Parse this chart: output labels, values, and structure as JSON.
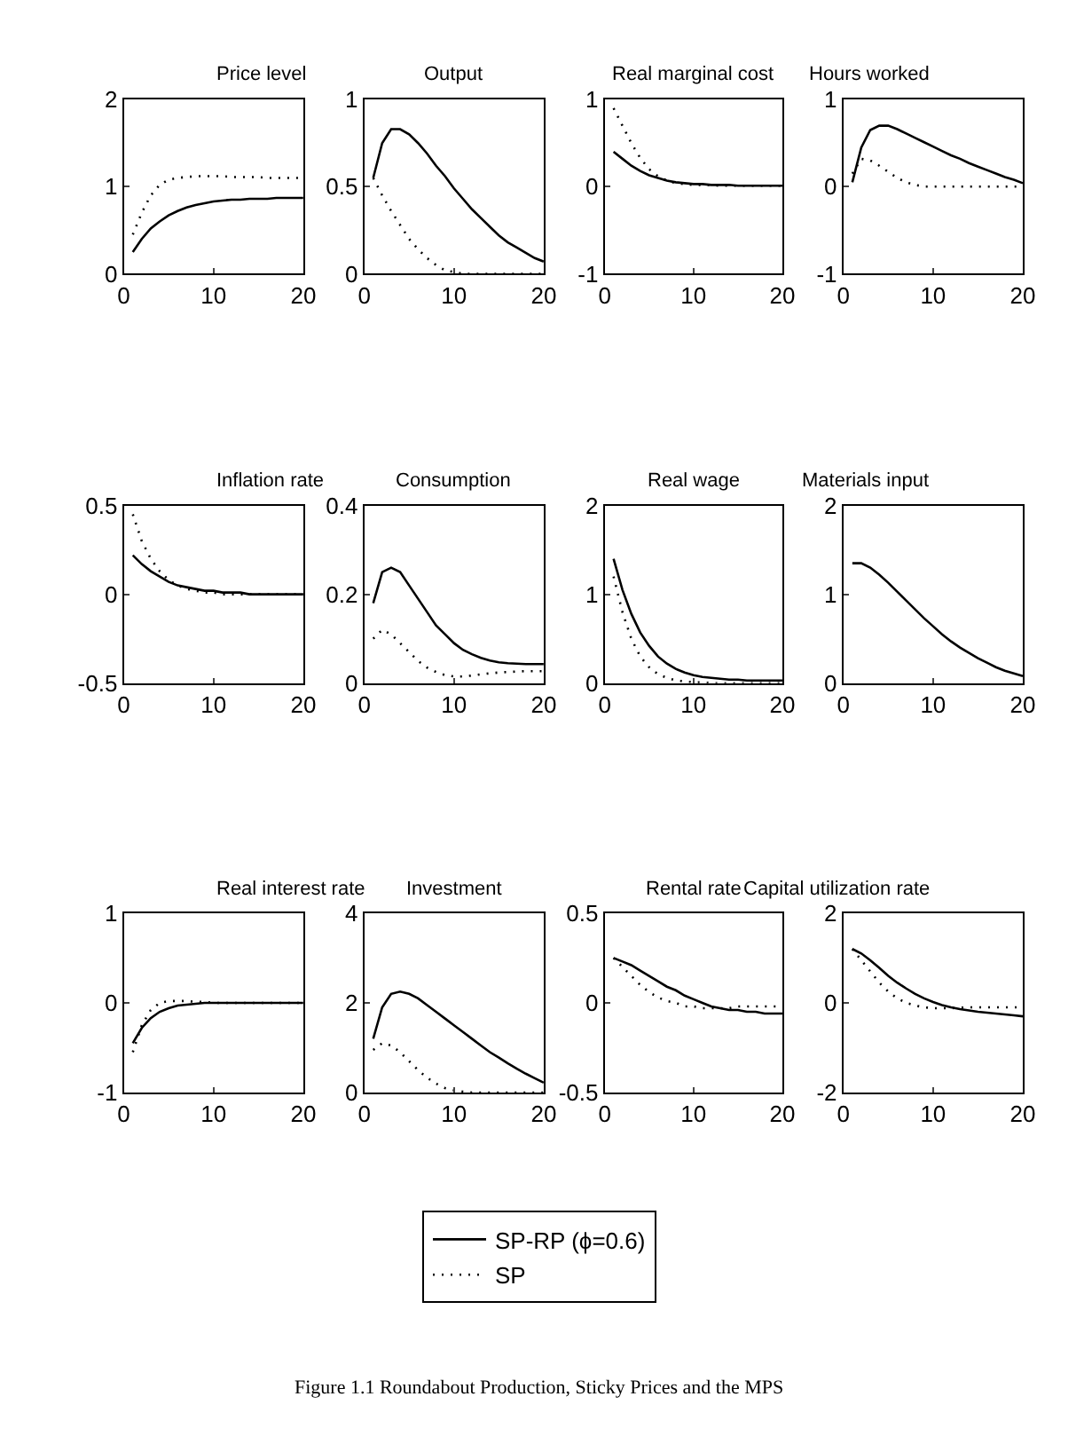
{
  "chart_data": [
    {
      "type": "line",
      "title": "Price level",
      "x": [
        1,
        2,
        3,
        4,
        5,
        6,
        7,
        8,
        9,
        10,
        11,
        12,
        13,
        14,
        15,
        16,
        17,
        18,
        19,
        20
      ],
      "xlim": [
        0,
        20
      ],
      "xticks": [
        0,
        10,
        20
      ],
      "ylim": [
        0,
        2
      ],
      "yticks": [
        0,
        1,
        2
      ],
      "legend": "bottom",
      "series": [
        {
          "name": "SP-RP (ϕ=0.6)",
          "color": "#000000",
          "line_style": "solid",
          "values": [
            0.25,
            0.4,
            0.52,
            0.6,
            0.67,
            0.72,
            0.76,
            0.79,
            0.81,
            0.83,
            0.84,
            0.85,
            0.85,
            0.86,
            0.86,
            0.86,
            0.87,
            0.87,
            0.87,
            0.87
          ]
        },
        {
          "name": "SP",
          "color": "#000000",
          "line_style": "dotted",
          "values": [
            0.45,
            0.7,
            0.9,
            1.02,
            1.08,
            1.1,
            1.11,
            1.12,
            1.12,
            1.12,
            1.12,
            1.11,
            1.11,
            1.11,
            1.11,
            1.1,
            1.1,
            1.1,
            1.1,
            1.1
          ]
        }
      ]
    },
    {
      "type": "line",
      "title": "Output",
      "x": [
        1,
        2,
        3,
        4,
        5,
        6,
        7,
        8,
        9,
        10,
        11,
        12,
        13,
        14,
        15,
        16,
        17,
        18,
        19,
        20
      ],
      "xlim": [
        0,
        20
      ],
      "xticks": [
        0,
        10,
        20
      ],
      "ylim": [
        0,
        1
      ],
      "yticks": [
        0,
        0.5,
        1
      ],
      "legend": "bottom",
      "series": [
        {
          "name": "SP-RP (ϕ=0.6)",
          "color": "#000000",
          "line_style": "solid",
          "values": [
            0.55,
            0.75,
            0.83,
            0.83,
            0.8,
            0.75,
            0.69,
            0.62,
            0.56,
            0.49,
            0.43,
            0.37,
            0.32,
            0.27,
            0.22,
            0.18,
            0.15,
            0.12,
            0.09,
            0.07
          ]
        },
        {
          "name": "SP",
          "color": "#000000",
          "line_style": "dotted",
          "values": [
            0.55,
            0.45,
            0.36,
            0.28,
            0.2,
            0.14,
            0.09,
            0.05,
            0.02,
            0.01,
            0,
            0,
            0,
            0,
            0,
            0,
            0,
            0,
            0,
            0
          ]
        }
      ]
    },
    {
      "type": "line",
      "title": "Real marginal cost",
      "x": [
        1,
        2,
        3,
        4,
        5,
        6,
        7,
        8,
        9,
        10,
        11,
        12,
        13,
        14,
        15,
        16,
        17,
        18,
        19,
        20
      ],
      "xlim": [
        0,
        20
      ],
      "xticks": [
        0,
        10,
        20
      ],
      "ylim": [
        -1,
        1
      ],
      "yticks": [
        -1,
        0,
        1
      ],
      "legend": "bottom",
      "series": [
        {
          "name": "SP-RP (ϕ=0.6)",
          "color": "#000000",
          "line_style": "solid",
          "values": [
            0.4,
            0.32,
            0.24,
            0.18,
            0.13,
            0.1,
            0.07,
            0.05,
            0.04,
            0.03,
            0.03,
            0.02,
            0.02,
            0.02,
            0.01,
            0.01,
            0.01,
            0.01,
            0.01,
            0.01
          ]
        },
        {
          "name": "SP",
          "color": "#000000",
          "line_style": "dotted",
          "values": [
            0.9,
            0.7,
            0.5,
            0.33,
            0.2,
            0.12,
            0.07,
            0.04,
            0.03,
            0.02,
            0.02,
            0.02,
            0.01,
            0.01,
            0.01,
            0.01,
            0.01,
            0.01,
            0.01,
            0.01
          ]
        }
      ]
    },
    {
      "type": "line",
      "title": "Hours worked",
      "x": [
        1,
        2,
        3,
        4,
        5,
        6,
        7,
        8,
        9,
        10,
        11,
        12,
        13,
        14,
        15,
        16,
        17,
        18,
        19,
        20
      ],
      "xlim": [
        0,
        20
      ],
      "xticks": [
        0,
        10,
        20
      ],
      "ylim": [
        -1,
        1
      ],
      "yticks": [
        -1,
        0,
        1
      ],
      "legend": "bottom",
      "series": [
        {
          "name": "SP-RP (ϕ=0.6)",
          "color": "#000000",
          "line_style": "solid",
          "values": [
            0.05,
            0.45,
            0.65,
            0.7,
            0.7,
            0.66,
            0.61,
            0.56,
            0.51,
            0.46,
            0.41,
            0.36,
            0.32,
            0.27,
            0.23,
            0.19,
            0.15,
            0.11,
            0.08,
            0.04
          ]
        },
        {
          "name": "SP",
          "color": "#000000",
          "line_style": "dotted",
          "values": [
            0.15,
            0.32,
            0.3,
            0.24,
            0.17,
            0.1,
            0.05,
            0.02,
            0,
            0,
            0,
            0,
            0,
            0,
            0,
            0,
            0,
            0,
            0,
            0
          ]
        }
      ]
    },
    {
      "type": "line",
      "title": "Inflation rate",
      "x": [
        1,
        2,
        3,
        4,
        5,
        6,
        7,
        8,
        9,
        10,
        11,
        12,
        13,
        14,
        15,
        16,
        17,
        18,
        19,
        20
      ],
      "xlim": [
        0,
        20
      ],
      "xticks": [
        0,
        10,
        20
      ],
      "ylim": [
        -0.5,
        0.5
      ],
      "yticks": [
        -0.5,
        0,
        0.5
      ],
      "legend": "bottom",
      "series": [
        {
          "name": "SP-RP (ϕ=0.6)",
          "color": "#000000",
          "line_style": "solid",
          "values": [
            0.22,
            0.17,
            0.13,
            0.1,
            0.07,
            0.05,
            0.04,
            0.03,
            0.02,
            0.02,
            0.01,
            0.01,
            0.01,
            0,
            0,
            0,
            0,
            0,
            0,
            0
          ]
        },
        {
          "name": "SP",
          "color": "#000000",
          "line_style": "dotted",
          "values": [
            0.45,
            0.3,
            0.2,
            0.13,
            0.08,
            0.05,
            0.03,
            0.02,
            0.01,
            0.01,
            0,
            0,
            0,
            0,
            0,
            0,
            0,
            0,
            0,
            0
          ]
        }
      ]
    },
    {
      "type": "line",
      "title": "Consumption",
      "x": [
        1,
        2,
        3,
        4,
        5,
        6,
        7,
        8,
        9,
        10,
        11,
        12,
        13,
        14,
        15,
        16,
        17,
        18,
        19,
        20
      ],
      "xlim": [
        0,
        20
      ],
      "xticks": [
        0,
        10,
        20
      ],
      "ylim": [
        0,
        0.4
      ],
      "yticks": [
        0,
        0.2,
        0.4
      ],
      "legend": "bottom",
      "series": [
        {
          "name": "SP-RP (ϕ=0.6)",
          "color": "#000000",
          "line_style": "solid",
          "values": [
            0.18,
            0.25,
            0.26,
            0.25,
            0.22,
            0.19,
            0.16,
            0.13,
            0.11,
            0.09,
            0.075,
            0.065,
            0.057,
            0.051,
            0.047,
            0.045,
            0.044,
            0.043,
            0.043,
            0.043
          ]
        },
        {
          "name": "SP",
          "color": "#000000",
          "line_style": "dotted",
          "values": [
            0.1,
            0.12,
            0.11,
            0.09,
            0.07,
            0.05,
            0.035,
            0.025,
            0.018,
            0.015,
            0.015,
            0.017,
            0.02,
            0.022,
            0.024,
            0.025,
            0.026,
            0.027,
            0.027,
            0.027
          ]
        }
      ]
    },
    {
      "type": "line",
      "title": "Real wage",
      "x": [
        1,
        2,
        3,
        4,
        5,
        6,
        7,
        8,
        9,
        10,
        11,
        12,
        13,
        14,
        15,
        16,
        17,
        18,
        19,
        20
      ],
      "xlim": [
        0,
        20
      ],
      "xticks": [
        0,
        10,
        20
      ],
      "ylim": [
        0,
        2
      ],
      "yticks": [
        0,
        1,
        2
      ],
      "legend": "bottom",
      "series": [
        {
          "name": "SP-RP (ϕ=0.6)",
          "color": "#000000",
          "line_style": "solid",
          "values": [
            1.4,
            1.05,
            0.78,
            0.57,
            0.42,
            0.3,
            0.22,
            0.16,
            0.12,
            0.09,
            0.07,
            0.06,
            0.05,
            0.04,
            0.04,
            0.03,
            0.03,
            0.03,
            0.03,
            0.03
          ]
        },
        {
          "name": "SP",
          "color": "#000000",
          "line_style": "dotted",
          "values": [
            1.2,
            0.8,
            0.5,
            0.3,
            0.18,
            0.1,
            0.06,
            0.03,
            0.02,
            0.01,
            0.01,
            0,
            0,
            0,
            0,
            0,
            0,
            0,
            0,
            0
          ]
        }
      ]
    },
    {
      "type": "line",
      "title": "Materials input",
      "x": [
        1,
        2,
        3,
        4,
        5,
        6,
        7,
        8,
        9,
        10,
        11,
        12,
        13,
        14,
        15,
        16,
        17,
        18,
        19,
        20
      ],
      "xlim": [
        0,
        20
      ],
      "xticks": [
        0,
        10,
        20
      ],
      "ylim": [
        0,
        2
      ],
      "yticks": [
        0,
        1,
        2
      ],
      "legend": "bottom",
      "series": [
        {
          "name": "SP-RP (ϕ=0.6)",
          "color": "#000000",
          "line_style": "solid",
          "values": [
            1.35,
            1.35,
            1.3,
            1.22,
            1.13,
            1.03,
            0.93,
            0.83,
            0.73,
            0.64,
            0.55,
            0.47,
            0.4,
            0.34,
            0.28,
            0.23,
            0.18,
            0.14,
            0.11,
            0.08
          ]
        }
      ]
    },
    {
      "type": "line",
      "title": "Real interest rate",
      "x": [
        1,
        2,
        3,
        4,
        5,
        6,
        7,
        8,
        9,
        10,
        11,
        12,
        13,
        14,
        15,
        16,
        17,
        18,
        19,
        20
      ],
      "xlim": [
        0,
        20
      ],
      "xticks": [
        0,
        10,
        20
      ],
      "ylim": [
        -1,
        1
      ],
      "yticks": [
        -1,
        0,
        1
      ],
      "legend": "bottom",
      "series": [
        {
          "name": "SP-RP (ϕ=0.6)",
          "color": "#000000",
          "line_style": "solid",
          "values": [
            -0.45,
            -0.28,
            -0.17,
            -0.1,
            -0.06,
            -0.03,
            -0.02,
            -0.01,
            0,
            0,
            0,
            0,
            0,
            0,
            0,
            0,
            0,
            0,
            0,
            0
          ]
        },
        {
          "name": "SP",
          "color": "#000000",
          "line_style": "dotted",
          "values": [
            -0.55,
            -0.25,
            -0.08,
            0,
            0.02,
            0.02,
            0.02,
            0.01,
            0.01,
            0,
            0,
            0,
            0,
            0,
            0,
            0,
            0,
            0,
            0,
            0
          ]
        }
      ]
    },
    {
      "type": "line",
      "title": "Investment",
      "x": [
        1,
        2,
        3,
        4,
        5,
        6,
        7,
        8,
        9,
        10,
        11,
        12,
        13,
        14,
        15,
        16,
        17,
        18,
        19,
        20
      ],
      "xlim": [
        0,
        20
      ],
      "xticks": [
        0,
        10,
        20
      ],
      "ylim": [
        0,
        4
      ],
      "yticks": [
        0,
        2,
        4
      ],
      "legend": "bottom",
      "series": [
        {
          "name": "SP-RP (ϕ=0.6)",
          "color": "#000000",
          "line_style": "solid",
          "values": [
            1.2,
            1.9,
            2.2,
            2.25,
            2.2,
            2.1,
            1.95,
            1.8,
            1.65,
            1.5,
            1.35,
            1.2,
            1.05,
            0.9,
            0.78,
            0.65,
            0.53,
            0.42,
            0.32,
            0.22
          ]
        },
        {
          "name": "SP",
          "color": "#000000",
          "line_style": "dotted",
          "values": [
            0.95,
            1.1,
            1.05,
            0.9,
            0.7,
            0.5,
            0.33,
            0.2,
            0.1,
            0.05,
            0.02,
            0,
            0,
            0,
            0,
            0,
            0,
            0,
            0,
            0
          ]
        }
      ]
    },
    {
      "type": "line",
      "title": "Rental rate",
      "x": [
        1,
        2,
        3,
        4,
        5,
        6,
        7,
        8,
        9,
        10,
        11,
        12,
        13,
        14,
        15,
        16,
        17,
        18,
        19,
        20
      ],
      "xlim": [
        0,
        20
      ],
      "xticks": [
        0,
        10,
        20
      ],
      "ylim": [
        -0.5,
        0.5
      ],
      "yticks": [
        -0.5,
        0,
        0.5
      ],
      "legend": "bottom",
      "series": [
        {
          "name": "SP-RP (ϕ=0.6)",
          "color": "#000000",
          "line_style": "solid",
          "values": [
            0.25,
            0.23,
            0.21,
            0.18,
            0.15,
            0.12,
            0.09,
            0.07,
            0.04,
            0.02,
            0,
            -0.02,
            -0.03,
            -0.04,
            -0.04,
            -0.05,
            -0.05,
            -0.06,
            -0.06,
            -0.06
          ]
        },
        {
          "name": "SP",
          "color": "#000000",
          "line_style": "dotted",
          "values": [
            0.25,
            0.2,
            0.15,
            0.1,
            0.06,
            0.03,
            0.01,
            0,
            -0.02,
            -0.02,
            -0.03,
            -0.03,
            -0.03,
            -0.03,
            -0.02,
            -0.02,
            -0.02,
            -0.02,
            -0.02,
            -0.02
          ]
        }
      ]
    },
    {
      "type": "line",
      "title": "Capital utilization rate",
      "x": [
        1,
        2,
        3,
        4,
        5,
        6,
        7,
        8,
        9,
        10,
        11,
        12,
        13,
        14,
        15,
        16,
        17,
        18,
        19,
        20
      ],
      "xlim": [
        0,
        20
      ],
      "xticks": [
        0,
        10,
        20
      ],
      "ylim": [
        -2,
        2
      ],
      "yticks": [
        -2,
        0,
        2
      ],
      "legend": "bottom",
      "annotations": [
        "Figure 1.1 Roundabout Production, Sticky Prices and the MPS"
      ],
      "series": [
        {
          "name": "SP-RP (ϕ=0.6)",
          "color": "#000000",
          "line_style": "solid",
          "values": [
            1.2,
            1.1,
            0.95,
            0.78,
            0.6,
            0.45,
            0.32,
            0.2,
            0.1,
            0.02,
            -0.05,
            -0.1,
            -0.14,
            -0.17,
            -0.2,
            -0.22,
            -0.24,
            -0.26,
            -0.28,
            -0.3
          ]
        },
        {
          "name": "SP",
          "color": "#000000",
          "line_style": "dotted",
          "values": [
            1.2,
            0.95,
            0.7,
            0.45,
            0.25,
            0.1,
            0,
            -0.06,
            -0.1,
            -0.12,
            -0.12,
            -0.12,
            -0.11,
            -0.1,
            -0.1,
            -0.1,
            -0.1,
            -0.1,
            -0.1,
            -0.1
          ]
        }
      ]
    }
  ]
}
